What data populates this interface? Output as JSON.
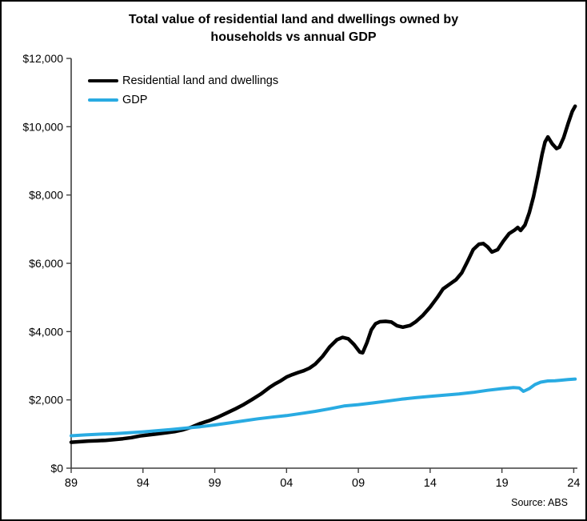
{
  "title": {
    "line1": "Total value of residential land and dwellings owned by",
    "line2": "households vs annual GDP"
  },
  "source": "Source: ABS",
  "chart_data": {
    "type": "line",
    "title": "Total value of residential land and dwellings owned by households vs annual GDP",
    "xlabel": "",
    "ylabel": "",
    "x_range": [
      1989,
      2024.2
    ],
    "y_range": [
      0,
      12000
    ],
    "grid": false,
    "legend_position": "top-left-inside",
    "axis_color": "#3f3f3f",
    "x_ticks": [
      {
        "v": 1989,
        "label": "89"
      },
      {
        "v": 1994,
        "label": "94"
      },
      {
        "v": 1999,
        "label": "99"
      },
      {
        "v": 2004,
        "label": "04"
      },
      {
        "v": 2009,
        "label": "09"
      },
      {
        "v": 2014,
        "label": "14"
      },
      {
        "v": 2019,
        "label": "19"
      },
      {
        "v": 2024,
        "label": "24"
      }
    ],
    "y_ticks": [
      {
        "v": 0,
        "label": "$0"
      },
      {
        "v": 2000,
        "label": "$2,000"
      },
      {
        "v": 4000,
        "label": "$4,000"
      },
      {
        "v": 6000,
        "label": "$6,000"
      },
      {
        "v": 8000,
        "label": "$8,000"
      },
      {
        "v": 10000,
        "label": "$10,000"
      },
      {
        "v": 12000,
        "label": "$12,000"
      }
    ],
    "series": [
      {
        "id": "residential",
        "name": "Residential land and dwellings",
        "color": "#000000",
        "line_width": 4.5,
        "points": [
          [
            1989.0,
            760
          ],
          [
            1989.6,
            775
          ],
          [
            1990.2,
            795
          ],
          [
            1990.8,
            805
          ],
          [
            1991.4,
            815
          ],
          [
            1992.0,
            840
          ],
          [
            1992.6,
            862
          ],
          [
            1993.2,
            895
          ],
          [
            1993.8,
            945
          ],
          [
            1994.4,
            975
          ],
          [
            1995.0,
            1005
          ],
          [
            1995.6,
            1035
          ],
          [
            1996.2,
            1070
          ],
          [
            1996.8,
            1125
          ],
          [
            1997.4,
            1205
          ],
          [
            1998.0,
            1310
          ],
          [
            1998.6,
            1390
          ],
          [
            1999.2,
            1490
          ],
          [
            1999.8,
            1610
          ],
          [
            2000.4,
            1730
          ],
          [
            2001.0,
            1860
          ],
          [
            2001.6,
            2010
          ],
          [
            2002.2,
            2170
          ],
          [
            2002.8,
            2360
          ],
          [
            2003.2,
            2470
          ],
          [
            2003.6,
            2560
          ],
          [
            2004.0,
            2670
          ],
          [
            2004.4,
            2740
          ],
          [
            2004.8,
            2800
          ],
          [
            2005.2,
            2855
          ],
          [
            2005.6,
            2930
          ],
          [
            2006.0,
            3050
          ],
          [
            2006.5,
            3270
          ],
          [
            2007.0,
            3550
          ],
          [
            2007.5,
            3760
          ],
          [
            2007.9,
            3830
          ],
          [
            2008.3,
            3790
          ],
          [
            2008.7,
            3620
          ],
          [
            2009.1,
            3400
          ],
          [
            2009.3,
            3380
          ],
          [
            2009.6,
            3680
          ],
          [
            2009.9,
            4050
          ],
          [
            2010.2,
            4230
          ],
          [
            2010.5,
            4290
          ],
          [
            2010.9,
            4300
          ],
          [
            2011.3,
            4280
          ],
          [
            2011.7,
            4170
          ],
          [
            2012.1,
            4130
          ],
          [
            2012.6,
            4180
          ],
          [
            2013.0,
            4290
          ],
          [
            2013.5,
            4480
          ],
          [
            2014.0,
            4720
          ],
          [
            2014.5,
            5000
          ],
          [
            2014.9,
            5250
          ],
          [
            2015.4,
            5400
          ],
          [
            2015.8,
            5520
          ],
          [
            2016.2,
            5720
          ],
          [
            2016.6,
            6050
          ],
          [
            2017.0,
            6400
          ],
          [
            2017.4,
            6560
          ],
          [
            2017.7,
            6580
          ],
          [
            2018.0,
            6480
          ],
          [
            2018.3,
            6330
          ],
          [
            2018.7,
            6400
          ],
          [
            2019.1,
            6650
          ],
          [
            2019.5,
            6870
          ],
          [
            2019.9,
            6980
          ],
          [
            2020.1,
            7050
          ],
          [
            2020.3,
            6960
          ],
          [
            2020.6,
            7120
          ],
          [
            2020.9,
            7480
          ],
          [
            2021.2,
            7950
          ],
          [
            2021.5,
            8550
          ],
          [
            2021.8,
            9200
          ],
          [
            2022.0,
            9550
          ],
          [
            2022.2,
            9700
          ],
          [
            2022.5,
            9500
          ],
          [
            2022.8,
            9360
          ],
          [
            2023.0,
            9400
          ],
          [
            2023.3,
            9680
          ],
          [
            2023.6,
            10080
          ],
          [
            2023.9,
            10450
          ],
          [
            2024.1,
            10600
          ]
        ]
      },
      {
        "id": "gdp",
        "name": "GDP",
        "color": "#29ABE2",
        "line_width": 4,
        "points": [
          [
            1989.0,
            950
          ],
          [
            1990.0,
            975
          ],
          [
            1991.0,
            995
          ],
          [
            1992.0,
            1010
          ],
          [
            1993.0,
            1035
          ],
          [
            1994.0,
            1065
          ],
          [
            1995.0,
            1100
          ],
          [
            1996.0,
            1135
          ],
          [
            1997.0,
            1175
          ],
          [
            1998.0,
            1215
          ],
          [
            1999.0,
            1265
          ],
          [
            2000.0,
            1325
          ],
          [
            2001.0,
            1385
          ],
          [
            2002.0,
            1445
          ],
          [
            2003.0,
            1495
          ],
          [
            2004.0,
            1540
          ],
          [
            2005.0,
            1600
          ],
          [
            2006.0,
            1665
          ],
          [
            2007.0,
            1740
          ],
          [
            2008.0,
            1820
          ],
          [
            2009.0,
            1860
          ],
          [
            2010.0,
            1910
          ],
          [
            2011.0,
            1965
          ],
          [
            2012.0,
            2020
          ],
          [
            2013.0,
            2065
          ],
          [
            2014.0,
            2105
          ],
          [
            2015.0,
            2140
          ],
          [
            2016.0,
            2175
          ],
          [
            2017.0,
            2220
          ],
          [
            2018.0,
            2280
          ],
          [
            2019.0,
            2330
          ],
          [
            2019.8,
            2360
          ],
          [
            2020.2,
            2350
          ],
          [
            2020.5,
            2250
          ],
          [
            2020.9,
            2330
          ],
          [
            2021.3,
            2450
          ],
          [
            2021.7,
            2520
          ],
          [
            2022.2,
            2555
          ],
          [
            2022.7,
            2560
          ],
          [
            2023.1,
            2575
          ],
          [
            2023.6,
            2595
          ],
          [
            2024.1,
            2610
          ]
        ]
      }
    ]
  }
}
